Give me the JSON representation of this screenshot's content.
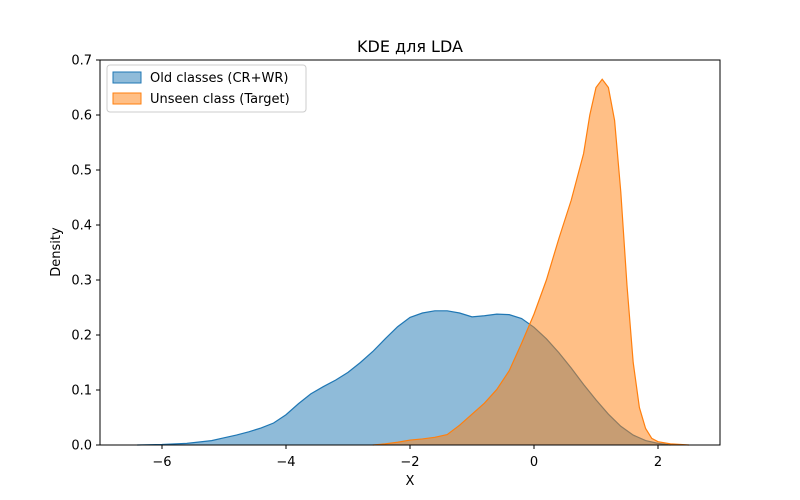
{
  "chart_data": {
    "type": "area",
    "title": "KDE для LDA",
    "xlabel": "X",
    "ylabel": "Density",
    "xlim": [
      -7.0,
      3.0
    ],
    "ylim": [
      0.0,
      0.7
    ],
    "xticks": [
      -6,
      -4,
      -2,
      0,
      2
    ],
    "xtick_labels": [
      "−6",
      "−4",
      "−2",
      "0",
      "2"
    ],
    "yticks": [
      0.0,
      0.1,
      0.2,
      0.3,
      0.4,
      0.5,
      0.6,
      0.7
    ],
    "ytick_labels": [
      "0.0",
      "0.1",
      "0.2",
      "0.3",
      "0.4",
      "0.5",
      "0.6",
      "0.7"
    ],
    "grid": false,
    "legend_position": "top-left",
    "series": [
      {
        "name": "Old classes (CR+WR)",
        "fill": "#1f77b4",
        "stroke": "#1f77b4",
        "fill_opacity": 0.5,
        "x": [
          -6.4,
          -6.0,
          -5.6,
          -5.2,
          -5.0,
          -4.8,
          -4.6,
          -4.4,
          -4.2,
          -4.0,
          -3.8,
          -3.6,
          -3.4,
          -3.2,
          -3.0,
          -2.8,
          -2.6,
          -2.4,
          -2.2,
          -2.0,
          -1.8,
          -1.6,
          -1.4,
          -1.2,
          -1.0,
          -0.8,
          -0.6,
          -0.4,
          -0.2,
          0.0,
          0.2,
          0.4,
          0.6,
          0.8,
          1.0,
          1.2,
          1.4,
          1.6,
          1.8,
          2.0,
          2.2
        ],
        "y": [
          0.0,
          0.001,
          0.003,
          0.008,
          0.013,
          0.018,
          0.024,
          0.031,
          0.04,
          0.055,
          0.075,
          0.093,
          0.106,
          0.118,
          0.132,
          0.15,
          0.17,
          0.193,
          0.215,
          0.232,
          0.24,
          0.244,
          0.244,
          0.24,
          0.233,
          0.235,
          0.238,
          0.237,
          0.23,
          0.214,
          0.193,
          0.168,
          0.14,
          0.11,
          0.082,
          0.056,
          0.034,
          0.018,
          0.008,
          0.003,
          0.0
        ]
      },
      {
        "name": "Unseen class (Target)",
        "fill": "#ff7f0e",
        "stroke": "#ff7f0e",
        "fill_opacity": 0.5,
        "x": [
          -2.6,
          -2.4,
          -2.2,
          -2.0,
          -1.8,
          -1.6,
          -1.4,
          -1.2,
          -1.0,
          -0.8,
          -0.6,
          -0.4,
          -0.2,
          0.0,
          0.2,
          0.4,
          0.6,
          0.8,
          0.9,
          1.0,
          1.1,
          1.2,
          1.3,
          1.4,
          1.5,
          1.6,
          1.7,
          1.8,
          1.9,
          2.0,
          2.2,
          2.5
        ],
        "y": [
          0.0,
          0.002,
          0.005,
          0.009,
          0.011,
          0.014,
          0.019,
          0.036,
          0.056,
          0.076,
          0.101,
          0.135,
          0.185,
          0.238,
          0.3,
          0.375,
          0.445,
          0.53,
          0.6,
          0.65,
          0.665,
          0.65,
          0.59,
          0.46,
          0.29,
          0.15,
          0.068,
          0.03,
          0.012,
          0.006,
          0.002,
          0.0
        ]
      }
    ]
  }
}
